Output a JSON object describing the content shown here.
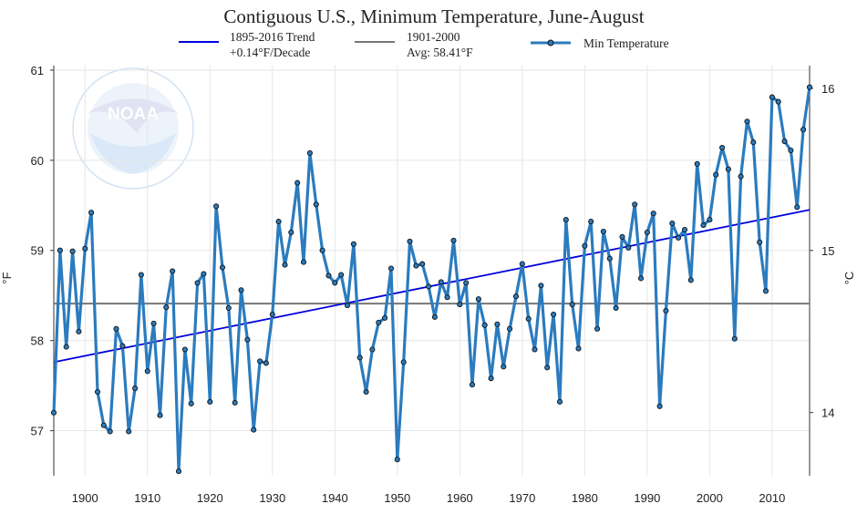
{
  "chart_data": {
    "type": "line",
    "title": "Contiguous U.S., Minimum Temperature, June-August",
    "xlabel": "",
    "ylabel": "°F",
    "y2label": "°C",
    "xlim": [
      1895,
      2016
    ],
    "ylim": [
      56.5,
      61.05
    ],
    "y2lim": [
      13.61,
      16.14
    ],
    "x_ticks": [
      "1900",
      "1910",
      "1920",
      "1930",
      "1940",
      "1950",
      "1960",
      "1970",
      "1980",
      "1990",
      "2000",
      "2010"
    ],
    "y_ticks": [
      "57",
      "58",
      "59",
      "60",
      "61"
    ],
    "y2_ticks": [
      "14",
      "15",
      "16"
    ],
    "legend": {
      "trend_line1": "1895-2016 Trend",
      "trend_line2": "+0.14°F/Decade",
      "avg_line1": "1901-2000",
      "avg_line2": "Avg: 58.41°F",
      "series_label": "Min Temperature"
    },
    "logo_text": "NOAA",
    "trend": {
      "x": [
        1895,
        2016
      ],
      "y": [
        57.76,
        59.45
      ]
    },
    "average": {
      "value": 58.41
    },
    "series": [
      {
        "name": "Min Temperature",
        "x_start": 1895,
        "values": [
          57.2,
          59.0,
          57.93,
          58.99,
          58.1,
          59.02,
          59.42,
          57.43,
          57.06,
          56.99,
          58.13,
          57.94,
          56.99,
          57.47,
          58.73,
          57.66,
          58.19,
          57.17,
          58.37,
          58.77,
          56.55,
          57.9,
          57.3,
          58.64,
          58.74,
          57.32,
          59.49,
          58.81,
          58.36,
          57.31,
          58.56,
          58.01,
          57.01,
          57.77,
          57.75,
          58.29,
          59.32,
          58.84,
          59.2,
          59.75,
          58.87,
          60.08,
          59.51,
          59.0,
          58.72,
          58.64,
          58.73,
          58.39,
          59.07,
          57.81,
          57.43,
          57.9,
          58.2,
          58.25,
          58.8,
          56.68,
          57.76,
          59.1,
          58.83,
          58.85,
          58.6,
          58.26,
          58.65,
          58.48,
          59.11,
          58.4,
          58.64,
          57.51,
          58.46,
          58.17,
          57.58,
          58.18,
          57.71,
          58.13,
          58.49,
          58.85,
          58.24,
          57.9,
          58.61,
          57.7,
          58.29,
          57.32,
          59.34,
          58.4,
          57.91,
          59.05,
          59.32,
          58.13,
          59.21,
          58.91,
          58.36,
          59.15,
          59.03,
          59.51,
          58.69,
          59.2,
          59.41,
          57.27,
          58.33,
          59.3,
          59.14,
          59.23,
          58.67,
          59.96,
          59.28,
          59.34,
          59.84,
          60.14,
          59.9,
          58.02,
          59.82,
          60.43,
          60.2,
          59.09,
          58.55,
          60.7,
          60.65,
          60.21,
          60.11,
          59.48,
          60.34,
          60.81
        ]
      }
    ]
  }
}
